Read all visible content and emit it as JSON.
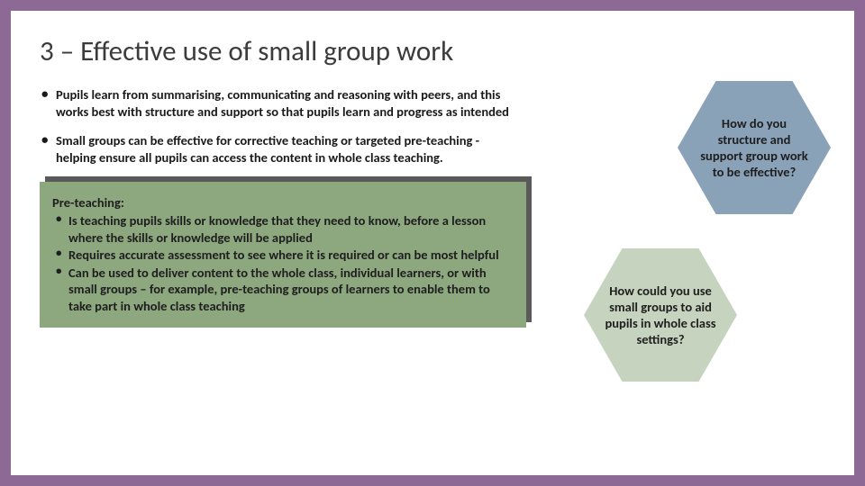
{
  "colors": {
    "frame": "#8d6a95",
    "slide_bg": "#ffffff",
    "title_color": "#3c3c3c",
    "box_bg": "#8da77f",
    "box_shadow": "#5a5a5a",
    "hex1_bg": "#8aa2b8",
    "hex2_bg": "#c6d3bf",
    "text_color": "#1a1a1a"
  },
  "title": "3 – Effective use of small group work",
  "bullets": [
    {
      "pre": "Pupils learn from summarising, communicating and reasoning with peers, and this works best with ",
      "bold": "structure and support",
      "post": " so that pupils learn and progress as intended"
    },
    {
      "pre": "Small groups can be effective for corrective teaching or targeted ",
      "bold": "pre-teaching",
      "post": " - helping ensure all pupils can access the content in whole class teaching."
    }
  ],
  "box": {
    "heading": "Pre-teaching:",
    "items": [
      "Is teaching pupils skills or knowledge that they need to know, before a lesson where the skills or knowledge will be applied",
      "Requires accurate assessment to see where it is required or can be most helpful",
      "Can be used to deliver content to the whole class, individual learners, or with small groups – for example, pre-teaching groups of learners to enable them to take part in whole class teaching"
    ]
  },
  "hexagons": {
    "q1": "How do you structure and support group work to be effective?",
    "q2": "How could you use small groups to aid pupils in whole class settings?"
  }
}
